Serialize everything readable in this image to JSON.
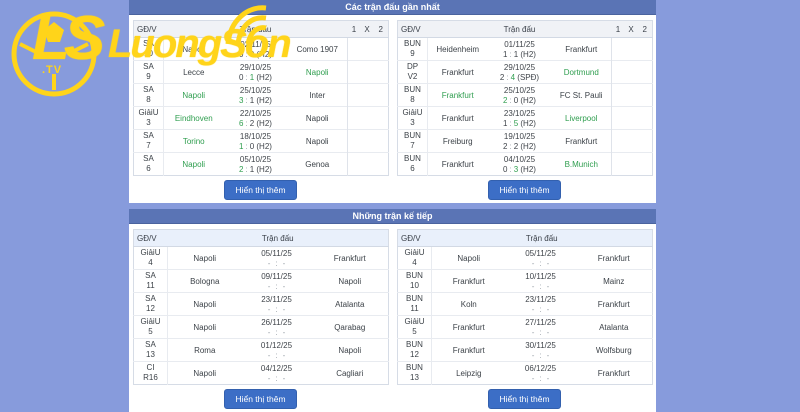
{
  "logo": {
    "mark": "LS",
    "tv": ".TV",
    "name": "LuongSon"
  },
  "colors": {
    "background": "#879BDC",
    "section_bar": "#5A74B5",
    "button": "#3C6EC6",
    "winner_green": "#2F9E4F",
    "logo_yellow": "#FFD41A"
  },
  "sections": [
    {
      "title": "Các trận đấu gần nhất",
      "button_label": "Hiển thị thêm",
      "headers": {
        "stage": "GĐ/V",
        "match": "Trận đấu",
        "odds": [
          "1",
          "X",
          "2"
        ]
      },
      "tables": [
        {
          "rows": [
            {
              "stage": [
                "SA",
                "10"
              ],
              "home": "Napoli",
              "date": "02/11/25",
              "hs": "0",
              "as": "0",
              "note": "(H2)",
              "winner": "draw",
              "away": "Como 1907"
            },
            {
              "stage": [
                "SA",
                "9"
              ],
              "home": "Lecce",
              "date": "29/10/25",
              "hs": "0",
              "as": "1",
              "note": "(H2)",
              "winner": "away",
              "away": "Napoli"
            },
            {
              "stage": [
                "SA",
                "8"
              ],
              "home": "Napoli",
              "date": "25/10/25",
              "hs": "3",
              "as": "1",
              "note": "(H2)",
              "winner": "home",
              "away": "Inter"
            },
            {
              "stage": [
                "GiảiU",
                "3"
              ],
              "home": "Eindhoven",
              "date": "22/10/25",
              "hs": "6",
              "as": "2",
              "note": "(H2)",
              "winner": "home",
              "away": "Napoli"
            },
            {
              "stage": [
                "SA",
                "7"
              ],
              "home": "Torino",
              "date": "18/10/25",
              "hs": "1",
              "as": "0",
              "note": "(H2)",
              "winner": "home",
              "away": "Napoli"
            },
            {
              "stage": [
                "SA",
                "6"
              ],
              "home": "Napoli",
              "date": "05/10/25",
              "hs": "2",
              "as": "1",
              "note": "(H2)",
              "winner": "home",
              "away": "Genoa"
            }
          ]
        },
        {
          "rows": [
            {
              "stage": [
                "BUN",
                "9"
              ],
              "home": "Heidenheim",
              "date": "01/11/25",
              "hs": "1",
              "as": "1",
              "note": "(H2)",
              "winner": "draw",
              "away": "Frankfurt"
            },
            {
              "stage": [
                "DP",
                "V2"
              ],
              "home": "Frankfurt",
              "date": "29/10/25",
              "hs": "2",
              "as": "4",
              "note": "(SPĐ)",
              "winner": "away",
              "away": "Dortmund"
            },
            {
              "stage": [
                "BUN",
                "8"
              ],
              "home": "Frankfurt",
              "date": "25/10/25",
              "hs": "2",
              "as": "0",
              "note": "(H2)",
              "winner": "home",
              "away": "FC St. Pauli"
            },
            {
              "stage": [
                "GiảiU",
                "3"
              ],
              "home": "Frankfurt",
              "date": "23/10/25",
              "hs": "1",
              "as": "5",
              "note": "(H2)",
              "winner": "away",
              "away": "Liverpool"
            },
            {
              "stage": [
                "BUN",
                "7"
              ],
              "home": "Freiburg",
              "date": "19/10/25",
              "hs": "2",
              "as": "2",
              "note": "(H2)",
              "winner": "draw",
              "away": "Frankfurt"
            },
            {
              "stage": [
                "BUN",
                "6"
              ],
              "home": "Frankfurt",
              "date": "04/10/25",
              "hs": "0",
              "as": "3",
              "note": "(H2)",
              "winner": "away",
              "away": "B.Munich"
            }
          ]
        }
      ]
    },
    {
      "title": "Những trận kế tiếp",
      "button_label": "Hiển thị thêm",
      "headers": {
        "stage": "GĐ/V",
        "match": "Trận đấu"
      },
      "tables": [
        {
          "rows": [
            {
              "stage": [
                "GiảiU",
                "4"
              ],
              "home": "Napoli",
              "date": "05/11/25",
              "hs": "-",
              "as": "-",
              "note": "",
              "winner": "none",
              "away": "Frankfurt"
            },
            {
              "stage": [
                "SA",
                "11"
              ],
              "home": "Bologna",
              "date": "09/11/25",
              "hs": "-",
              "as": "-",
              "note": "",
              "winner": "none",
              "away": "Napoli"
            },
            {
              "stage": [
                "SA",
                "12"
              ],
              "home": "Napoli",
              "date": "23/11/25",
              "hs": "-",
              "as": "-",
              "note": "",
              "winner": "none",
              "away": "Atalanta"
            },
            {
              "stage": [
                "GiảiU",
                "5"
              ],
              "home": "Napoli",
              "date": "26/11/25",
              "hs": "-",
              "as": "-",
              "note": "",
              "winner": "none",
              "away": "Qarabag"
            },
            {
              "stage": [
                "SA",
                "13"
              ],
              "home": "Roma",
              "date": "01/12/25",
              "hs": "-",
              "as": "-",
              "note": "",
              "winner": "none",
              "away": "Napoli"
            },
            {
              "stage": [
                "CI",
                "R16"
              ],
              "home": "Napoli",
              "date": "04/12/25",
              "hs": "-",
              "as": "-",
              "note": "",
              "winner": "none",
              "away": "Cagliari"
            }
          ]
        },
        {
          "rows": [
            {
              "stage": [
                "GiảiU",
                "4"
              ],
              "home": "Napoli",
              "date": "05/11/25",
              "hs": "-",
              "as": "-",
              "note": "",
              "winner": "none",
              "away": "Frankfurt"
            },
            {
              "stage": [
                "BUN",
                "10"
              ],
              "home": "Frankfurt",
              "date": "10/11/25",
              "hs": "-",
              "as": "-",
              "note": "",
              "winner": "none",
              "away": "Mainz"
            },
            {
              "stage": [
                "BUN",
                "11"
              ],
              "home": "Koln",
              "date": "23/11/25",
              "hs": "-",
              "as": "-",
              "note": "",
              "winner": "none",
              "away": "Frankfurt"
            },
            {
              "stage": [
                "GiảiU",
                "5"
              ],
              "home": "Frankfurt",
              "date": "27/11/25",
              "hs": "-",
              "as": "-",
              "note": "",
              "winner": "none",
              "away": "Atalanta"
            },
            {
              "stage": [
                "BUN",
                "12"
              ],
              "home": "Frankfurt",
              "date": "30/11/25",
              "hs": "-",
              "as": "-",
              "note": "",
              "winner": "none",
              "away": "Wolfsburg"
            },
            {
              "stage": [
                "BUN",
                "13"
              ],
              "home": "Leipzig",
              "date": "06/12/25",
              "hs": "-",
              "as": "-",
              "note": "",
              "winner": "none",
              "away": "Frankfurt"
            }
          ]
        }
      ]
    }
  ]
}
